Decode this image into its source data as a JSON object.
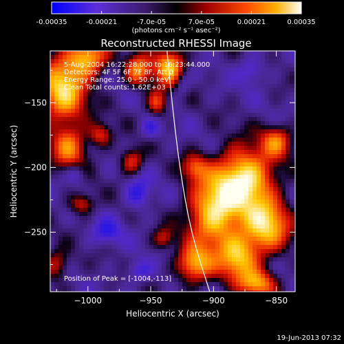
{
  "colorbar": {
    "ticks": [
      "-0.00035",
      "-0.00021",
      "-7.0e-05",
      "7.0e-05",
      "0.00021",
      "0.00035"
    ],
    "unit_label": "(photons cm⁻² s⁻¹ asec⁻²)",
    "range": [
      -0.00035,
      0.00035
    ]
  },
  "chart_data": {
    "type": "heatmap",
    "title": "Reconstructed RHESSI Image",
    "xlabel": "Heliocentric X (arcsec)",
    "ylabel": "Heliocentric Y (arcsec)",
    "xlim": [
      -1030,
      -835
    ],
    "ylim": [
      -296,
      -110
    ],
    "xticks": [
      -1000,
      -950,
      -900,
      -850
    ],
    "xtick_labels": [
      "−1000",
      "−950",
      "−900",
      "−850"
    ],
    "yticks": [
      -150,
      -200,
      -250
    ],
    "ytick_labels": [
      "−150",
      "−200",
      "−250"
    ],
    "annotations": [
      "5-Aug-2004 16:22:28.000 to 16:23:44.000",
      "Detectors: 4F 5F 6F 7F 8F, Att 0",
      "Energy Range: 25.0 - 50.0 keV",
      "Clean    Total counts: 1.62E+03"
    ],
    "peak_label": "Position of Peak = [-1004,-113]",
    "peak": [
      -1004,
      -113
    ],
    "limb_curve": [
      [
        -937,
        -110
      ],
      [
        -933,
        -150
      ],
      [
        -927,
        -200
      ],
      [
        -918,
        -250
      ],
      [
        -903,
        -296
      ]
    ]
  },
  "footer": {
    "timestamp": "19-Jun-2013 07:32"
  }
}
